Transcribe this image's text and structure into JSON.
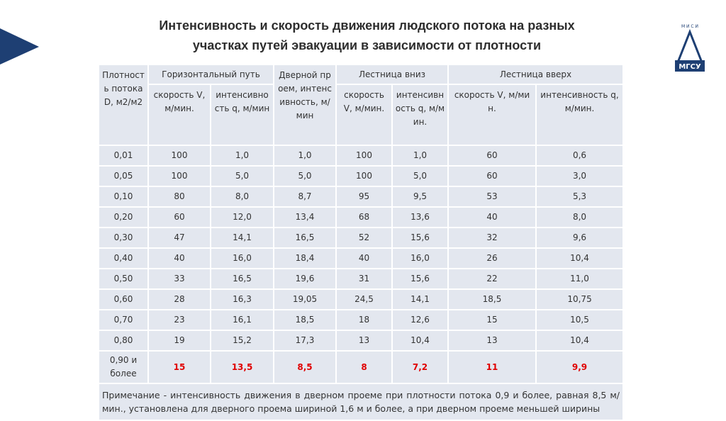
{
  "title": [
    "Интенсивность и скорость движения людского потока на разных",
    "участках путей эвакуации в зависимости от плотности"
  ],
  "logo": {
    "top": "М И С И",
    "bottom": "МГСУ"
  },
  "table": {
    "header": {
      "density": "Плотность потока D, м2/м2",
      "groups": [
        {
          "label": "Горизонтальный путь",
          "sub": [
            "скорость V, м/мин.",
            "интенсивность q, м/мин"
          ]
        },
        {
          "label": "Дверной проем, интенсивность, м/мин",
          "sub": []
        },
        {
          "label": "Лестница вниз",
          "sub": [
            "скорость V, м/мин.",
            "интенсивность q, м/мин."
          ]
        },
        {
          "label": "Лестница вверх",
          "sub": [
            "скорость V, м/мин.",
            "интенсивность q, м/мин."
          ]
        }
      ]
    },
    "rows": [
      [
        "0,01",
        "100",
        "1,0",
        "1,0",
        "100",
        "1,0",
        "60",
        "0,6"
      ],
      [
        "0,05",
        "100",
        "5,0",
        "5,0",
        "100",
        "5,0",
        "60",
        "3,0"
      ],
      [
        "0,10",
        "80",
        "8,0",
        "8,7",
        "95",
        "9,5",
        "53",
        "5,3"
      ],
      [
        "0,20",
        "60",
        "12,0",
        "13,4",
        "68",
        "13,6",
        "40",
        "8,0"
      ],
      [
        "0,30",
        "47",
        "14,1",
        "16,5",
        "52",
        "15,6",
        "32",
        "9,6"
      ],
      [
        "0,40",
        "40",
        "16,0",
        "18,4",
        "40",
        "16,0",
        "26",
        "10,4"
      ],
      [
        "0,50",
        "33",
        "16,5",
        "19,6",
        "31",
        "15,6",
        "22",
        "11,0"
      ],
      [
        "0,60",
        "28",
        "16,3",
        "19,05",
        "24,5",
        "14,1",
        "18,5",
        "10,75"
      ],
      [
        "0,70",
        "23",
        "16,1",
        "18,5",
        "18",
        "12,6",
        "15",
        "10,5"
      ],
      [
        "0,80",
        "19",
        "15,2",
        "17,3",
        "13",
        "10,4",
        "13",
        "10,4"
      ],
      [
        "0,90 и более",
        "15",
        "13,5",
        "8,5",
        "8",
        "7,2",
        "11",
        "9,9"
      ]
    ],
    "note": "Примечание - интенсивность движения в дверном проеме при плотности потока 0,9 и более, равная 8,5 м/мин., установлена для дверного проема шириной 1,6 м и более, а при дверном проеме меньшей ширины"
  }
}
